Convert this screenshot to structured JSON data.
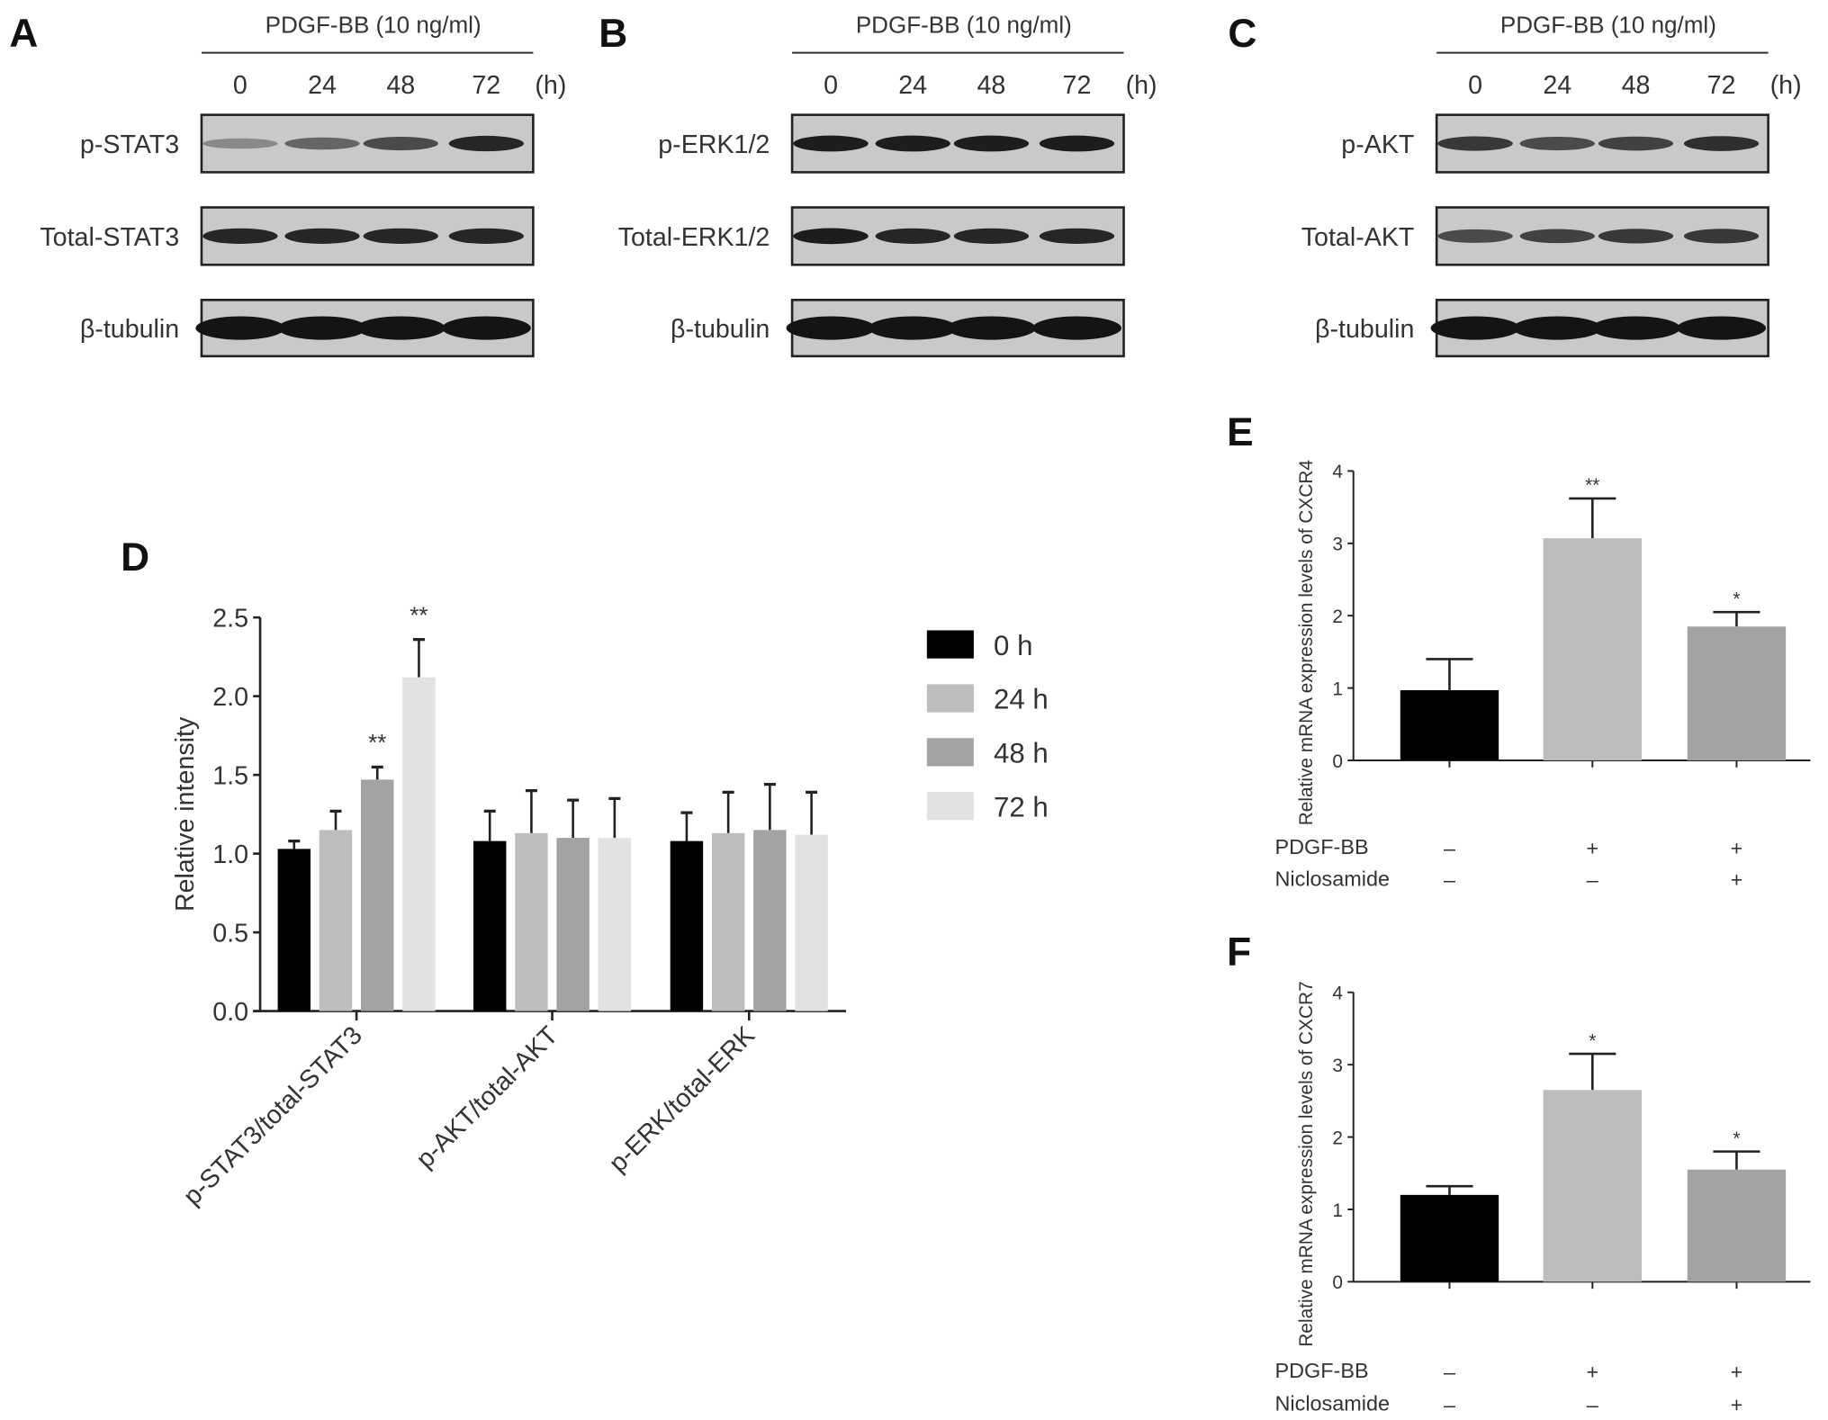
{
  "blots": [
    {
      "letter": "A",
      "treatment": "PDGF-BB  (10 ng/ml)",
      "times": [
        "0",
        "24",
        "48",
        "72"
      ],
      "unit": "(h)",
      "rows": [
        {
          "label": "p-STAT3",
          "intensity": [
            0.35,
            0.55,
            0.7,
            0.9
          ]
        },
        {
          "label": "Total-STAT3",
          "intensity": [
            0.9,
            0.9,
            0.9,
            0.9
          ]
        },
        {
          "label": "β-tubulin",
          "intensity": [
            1,
            1,
            1,
            1
          ]
        }
      ]
    },
    {
      "letter": "B",
      "treatment": "PDGF-BB  (10 ng/ml)",
      "times": [
        "0",
        "24",
        "48",
        "72"
      ],
      "unit": "(h)",
      "rows": [
        {
          "label": "p-ERK1/2",
          "intensity": [
            0.95,
            0.95,
            0.95,
            0.95
          ]
        },
        {
          "label": "Total-ERK1/2",
          "intensity": [
            0.95,
            0.9,
            0.9,
            0.9
          ]
        },
        {
          "label": "β-tubulin",
          "intensity": [
            1,
            1,
            1,
            1
          ]
        }
      ]
    },
    {
      "letter": "C",
      "treatment": "PDGF-BB  (10 ng/ml)",
      "times": [
        "0",
        "24",
        "48",
        "72"
      ],
      "unit": "(h)",
      "rows": [
        {
          "label": "p-AKT",
          "intensity": [
            0.8,
            0.7,
            0.75,
            0.85
          ]
        },
        {
          "label": "Total-AKT",
          "intensity": [
            0.7,
            0.75,
            0.8,
            0.8
          ]
        },
        {
          "label": "β-tubulin",
          "intensity": [
            1,
            1,
            1,
            1
          ]
        }
      ]
    }
  ],
  "chart_data": [
    {
      "letter": "D",
      "type": "bar",
      "ylabel": "Relative intensity",
      "ylim": [
        0,
        2.5
      ],
      "yticks": [
        "0.0",
        "0.5",
        "1.0",
        "1.5",
        "2.0",
        "2.5"
      ],
      "categories": [
        "p-STAT3/total-STAT3",
        "p-AKT/total-AKT",
        "p-ERK/total-ERK"
      ],
      "legend_position": "right",
      "series": [
        {
          "name": "0 h",
          "color": "#000000",
          "values": [
            1.03,
            1.08,
            1.08
          ],
          "errors": [
            0.05,
            0.19,
            0.18
          ],
          "sig": [
            "",
            "",
            ""
          ]
        },
        {
          "name": "24 h",
          "color": "#bdbdbd",
          "values": [
            1.15,
            1.13,
            1.13
          ],
          "errors": [
            0.12,
            0.27,
            0.26
          ],
          "sig": [
            "",
            "",
            ""
          ]
        },
        {
          "name": "48 h",
          "color": "#a3a3a3",
          "values": [
            1.47,
            1.1,
            1.15
          ],
          "errors": [
            0.08,
            0.24,
            0.29
          ],
          "sig": [
            "**",
            "",
            ""
          ]
        },
        {
          "name": "72 h",
          "color": "#e2e2e2",
          "values": [
            2.12,
            1.1,
            1.12
          ],
          "errors": [
            0.24,
            0.25,
            0.27
          ],
          "sig": [
            "**",
            "",
            ""
          ]
        }
      ]
    },
    {
      "letter": "E",
      "type": "bar",
      "ylabel": "Relative mRNA expression levels of CXCR4",
      "ylim": [
        0,
        4
      ],
      "yticks": [
        "0",
        "1",
        "2",
        "3",
        "4"
      ],
      "values": [
        0.97,
        3.07,
        1.85
      ],
      "errors": [
        0.43,
        0.55,
        0.2
      ],
      "colors": [
        "#000000",
        "#bdbdbd",
        "#a3a3a3"
      ],
      "sig": [
        "",
        "**",
        "*"
      ],
      "conditions": [
        {
          "name": "PDGF-BB",
          "signs": [
            "–",
            "+",
            "+"
          ]
        },
        {
          "name": "Niclosamide",
          "signs": [
            "–",
            "–",
            "+"
          ]
        }
      ]
    },
    {
      "letter": "F",
      "type": "bar",
      "ylabel": "Relative mRNA expression levels of CXCR7",
      "ylim": [
        0,
        4
      ],
      "yticks": [
        "0",
        "1",
        "2",
        "3",
        "4"
      ],
      "values": [
        1.2,
        2.65,
        1.55
      ],
      "errors": [
        0.12,
        0.5,
        0.25
      ],
      "colors": [
        "#000000",
        "#bdbdbd",
        "#a3a3a3"
      ],
      "sig": [
        "",
        "*",
        "*"
      ],
      "conditions": [
        {
          "name": "PDGF-BB",
          "signs": [
            "–",
            "+",
            "+"
          ]
        },
        {
          "name": "Niclosamide",
          "signs": [
            "–",
            "–",
            "+"
          ]
        }
      ]
    }
  ]
}
